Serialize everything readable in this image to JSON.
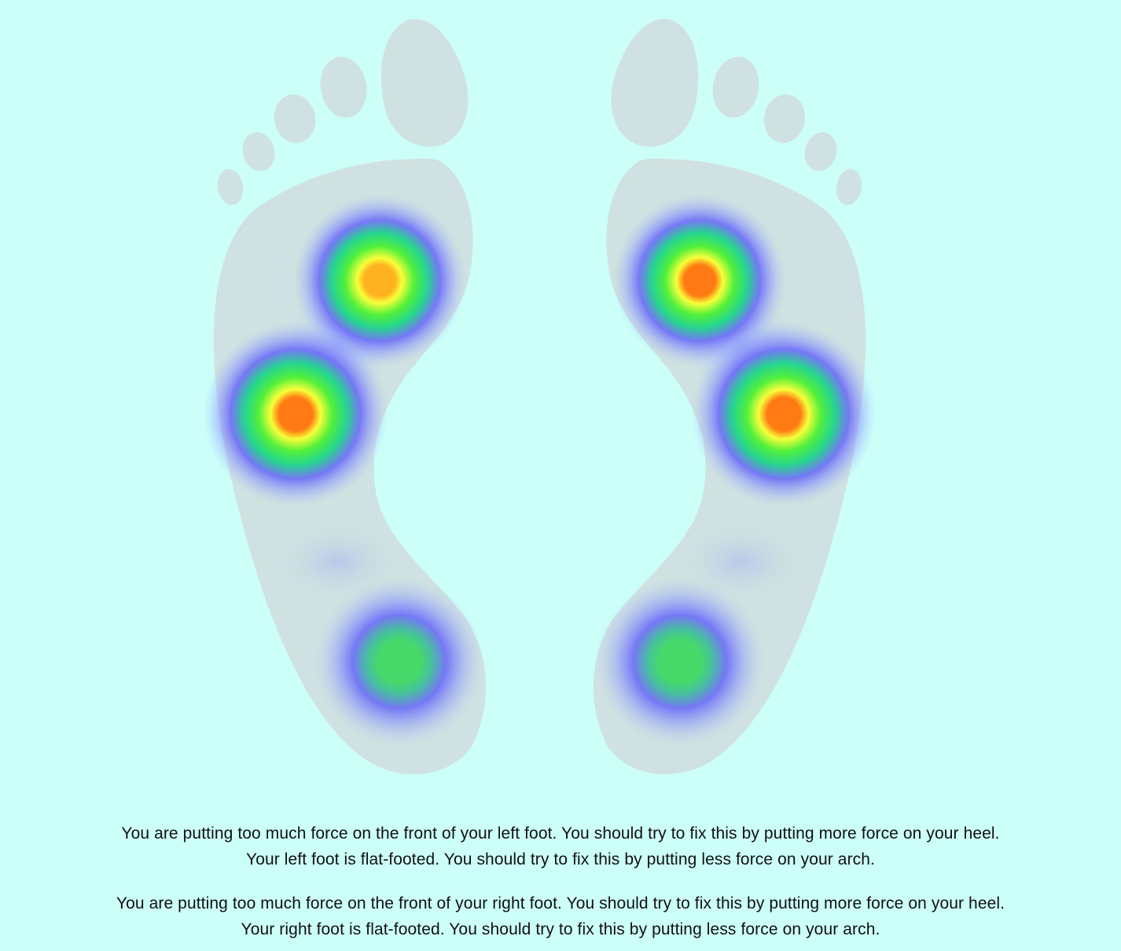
{
  "colors": {
    "background": "#ccfff8",
    "foot": "#cfe1e0",
    "text": "#111111"
  },
  "heatmap_scale": [
    "blue",
    "green",
    "yellow",
    "orange"
  ],
  "feet": {
    "left": {
      "hotspots": [
        {
          "name": "left-forefoot-inner-hotspot",
          "level": "high"
        },
        {
          "name": "left-forefoot-outer-hotspot",
          "level": "very-high"
        },
        {
          "name": "left-heel-hotspot",
          "level": "medium"
        }
      ]
    },
    "right": {
      "hotspots": [
        {
          "name": "right-forefoot-inner-hotspot",
          "level": "very-high"
        },
        {
          "name": "right-forefoot-outer-hotspot",
          "level": "very-high"
        },
        {
          "name": "right-heel-hotspot",
          "level": "medium"
        }
      ]
    }
  },
  "feedback": {
    "left": {
      "line1": "You are putting too much force on the front of your left foot. You should try to fix this by putting more force on your heel.",
      "line2": "Your left foot is flat-footed. You should try to fix this by putting less force on your arch."
    },
    "right": {
      "line1": "You are putting too much force on the front of your right foot. You should try to fix this by putting more force on your heel.",
      "line2": "Your right foot is flat-footed. You should try to fix this by putting less force on your arch."
    }
  }
}
